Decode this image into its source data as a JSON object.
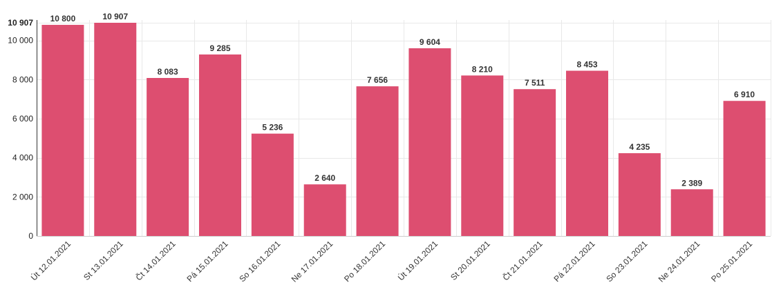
{
  "chart_data": {
    "type": "bar",
    "categories": [
      "Út 12.01.2021",
      "St 13.01.2021",
      "Čt 14.01.2021",
      "Pá 15.01.2021",
      "So 16.01.2021",
      "Ne 17.01.2021",
      "Po 18.01.2021",
      "Út 19.01.2021",
      "St 20.01.2021",
      "Čt 21.01.2021",
      "Pá 22.01.2021",
      "So 23.01.2021",
      "Ne 24.01.2021",
      "Po 25.01.2021"
    ],
    "values": [
      10800,
      10907,
      8083,
      9285,
      5236,
      2640,
      7656,
      9604,
      8210,
      7511,
      8453,
      4235,
      2389,
      6910
    ],
    "value_labels": [
      "10 800",
      "10 907",
      "8 083",
      "9 285",
      "5 236",
      "2 640",
      "7 656",
      "9 604",
      "8 210",
      "7 511",
      "8 453",
      "4 235",
      "2 389",
      "6 910"
    ],
    "yticks": [
      0,
      2000,
      4000,
      6000,
      8000,
      10000,
      10907
    ],
    "ytick_labels": [
      "0",
      "2 000",
      "4 000",
      "6 000",
      "8 000",
      "10 000",
      "10 907"
    ],
    "ylim": [
      0,
      10907
    ],
    "title": "",
    "xlabel": "",
    "ylabel": "",
    "grid": true,
    "bar_color": "#dc4a6d"
  }
}
